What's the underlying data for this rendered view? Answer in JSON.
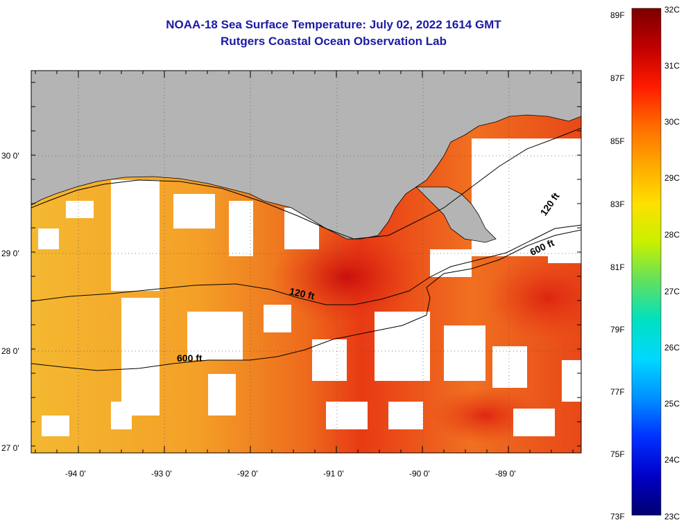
{
  "header": {
    "title": "NOAA-18 Sea Surface Temperature:  July 02, 2022 1614 GMT",
    "subtitle": "Rutgers Coastal Ocean Observation Lab"
  },
  "map": {
    "lon_ticks": [
      "-94 0'",
      "-93 0'",
      "-92 0'",
      "-91 0'",
      "-90 0'",
      "-89 0'"
    ],
    "lat_ticks": [
      "30 0'",
      "29 0'",
      "28 0'",
      "27 0'"
    ],
    "contours": [
      {
        "label": "120 ft"
      },
      {
        "label": "600 ft"
      },
      {
        "label": "120 ft"
      },
      {
        "label": "600 ft"
      }
    ],
    "colors": {
      "land": "#b4b4b4",
      "cloud": "#ffffff",
      "warm_sst": "#e8401a",
      "mid_sst": "#f28a1e",
      "cool_sst": "#f4c030"
    }
  },
  "colorbar": {
    "fahrenheit": [
      "89F",
      "87F",
      "85F",
      "83F",
      "81F",
      "79F",
      "77F",
      "75F",
      "73F"
    ],
    "celsius": [
      "32C",
      "31C",
      "30C",
      "29C",
      "28C",
      "27C",
      "26C",
      "25C",
      "24C",
      "23C"
    ],
    "gradient": [
      "#7a0000",
      "#c00000",
      "#ff1a00",
      "#ff6a00",
      "#ffa800",
      "#ffe000",
      "#c8f000",
      "#60e060",
      "#00e0c0",
      "#00d8ff",
      "#0090ff",
      "#0030ff",
      "#0000c8",
      "#00006e"
    ]
  }
}
